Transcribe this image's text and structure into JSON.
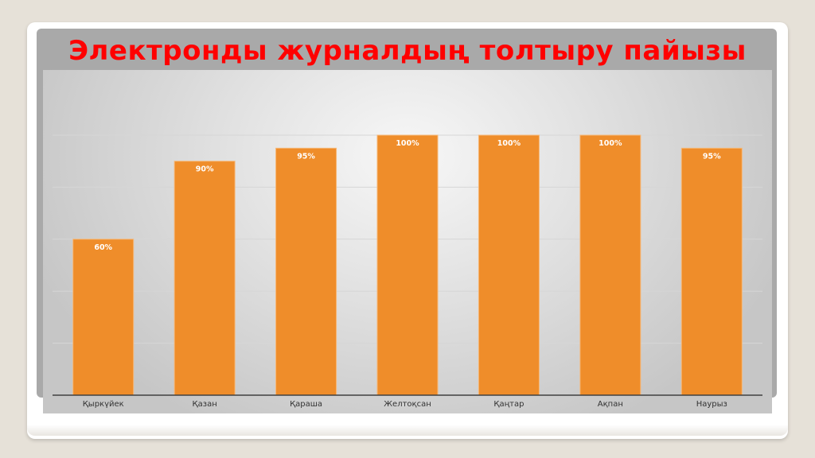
{
  "chart_data": {
    "type": "bar",
    "title": "Электронды журналдың толтыру пайызы",
    "xlabel": "",
    "ylabel": "",
    "categories": [
      "Қыркүйек",
      "Қазан",
      "Қараша",
      "Желтоқсан",
      "Қаңтар",
      "Ақпан",
      "Наурыз"
    ],
    "values": [
      60,
      90,
      95,
      100,
      100,
      100,
      95
    ],
    "data_labels": [
      "60%",
      "90%",
      "95%",
      "100%",
      "100%",
      "100%",
      "95%"
    ],
    "ylim": [
      0,
      100
    ],
    "grid": true,
    "legend": "none",
    "colors": {
      "bar": "#ef8d2a",
      "title": "#ff0000",
      "label": "#ffffff"
    }
  }
}
